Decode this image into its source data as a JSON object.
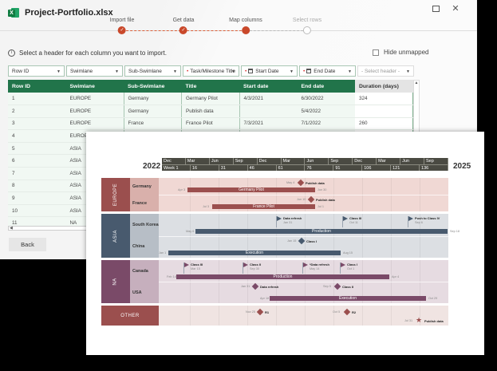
{
  "window": {
    "title": "Project-Portfolio.xlsx",
    "app_icon": "excel-icon",
    "controls": {
      "maximize": "maximize-icon",
      "close_glyph": "✕"
    }
  },
  "stepper": {
    "steps": [
      {
        "label": "Import file",
        "state": "done",
        "glyph": "✓"
      },
      {
        "label": "Get data",
        "state": "done",
        "glyph": "✓"
      },
      {
        "label": "Map columns",
        "state": "current",
        "glyph": ""
      },
      {
        "label": "Select rows",
        "state": "pending",
        "glyph": ""
      }
    ],
    "accent": "#c9482a"
  },
  "info": {
    "icon": "i",
    "text": "Select a header for each column you want to import."
  },
  "hide_unmapped": {
    "label": "Hide unmapped",
    "checked": false
  },
  "column_selectors": [
    {
      "value": "Row ID",
      "required": false,
      "calendar": false
    },
    {
      "value": "Swimlane",
      "required": false,
      "calendar": false
    },
    {
      "value": "Sub-Swimlane",
      "required": false,
      "calendar": false
    },
    {
      "value": "Task/Milestone Title",
      "required": true,
      "calendar": false
    },
    {
      "value": "Start Date",
      "required": true,
      "calendar": true
    },
    {
      "value": "End Date",
      "required": true,
      "calendar": true
    },
    {
      "value": "- Select header -",
      "required": false,
      "calendar": false,
      "placeholder": true
    }
  ],
  "table": {
    "headers": [
      "Row ID",
      "Swimlane",
      "Sub-Swimlane",
      "Title",
      "Start date",
      "End date",
      "Duration (days)"
    ],
    "rows": [
      [
        "1",
        "EUROPE",
        "Germany",
        "Germany Pilot",
        "4/3/2021",
        "6/30/2022",
        "324"
      ],
      [
        "2",
        "EUROPE",
        "Germany",
        "Publish data",
        "",
        "5/4/2022",
        ""
      ],
      [
        "3",
        "EUROPE",
        "France",
        "France Pilot",
        "7/3/2021",
        "7/1/2022",
        "260"
      ],
      [
        "4",
        "EUROPE",
        "",
        "",
        "",
        "",
        ""
      ],
      [
        "5",
        "ASIA",
        "",
        "",
        "",
        "",
        ""
      ],
      [
        "6",
        "ASIA",
        "",
        "",
        "",
        "",
        ""
      ],
      [
        "7",
        "ASIA",
        "",
        "",
        "",
        "",
        ""
      ],
      [
        "8",
        "ASIA",
        "",
        "",
        "",
        "",
        ""
      ],
      [
        "9",
        "ASIA",
        "",
        "",
        "",
        "",
        ""
      ],
      [
        "10",
        "ASIA",
        "",
        "",
        "",
        "",
        ""
      ],
      [
        "11",
        "NA",
        "",
        "",
        "",
        "",
        ""
      ]
    ],
    "header_color": "#21744a"
  },
  "buttons": {
    "back": "Back"
  },
  "gantt": {
    "start_year": "2022",
    "end_year": "2025",
    "months": [
      "Dec",
      "Mar",
      "Jun",
      "Sep",
      "Dec",
      "Mar",
      "Jun",
      "Sep",
      "Dec",
      "Mar",
      "Jun",
      "Sep"
    ],
    "weeks": [
      "Week 1",
      "16",
      "31",
      "46",
      "61",
      "76",
      "91",
      "106",
      "121",
      "136"
    ],
    "swimlanes": [
      {
        "name": "EUROPE",
        "color": "#9b4f4e",
        "sub_color": "#d9b0ab",
        "body_color": "#f0d8d4",
        "subs": [
          "Germany",
          "France"
        ],
        "tasks": [
          {
            "label": "Germany Pilot",
            "start": "Apr 3",
            "end": "Jun 30"
          },
          {
            "label": "France Pilot",
            "start": "Jul 3",
            "end": "Jul 1"
          }
        ],
        "milestones": [
          {
            "label": "Publish data",
            "date": "May 4",
            "shape": "diamond"
          },
          {
            "label": "Publish data",
            "date": "Jun 10",
            "shape": "diamond"
          }
        ]
      },
      {
        "name": "ASIA",
        "color": "#485a6e",
        "sub_color": "#b7bec6",
        "body_color": "#dcdfe3",
        "subs": [
          "South Korea",
          "China"
        ],
        "tasks": [
          {
            "label": "Production",
            "start": "May 6",
            "end": "Sep 18"
          },
          {
            "label": "Execution",
            "start": "Jan 1",
            "end": "Aug 15"
          }
        ],
        "milestones": [
          {
            "label": "Data refresh",
            "date": "Jan 31",
            "shape": "flag"
          },
          {
            "label": "Class III",
            "date": "Oct 11",
            "shape": "flag"
          },
          {
            "label": "Push to Class IV",
            "date": "Sep 6",
            "shape": "flag"
          },
          {
            "label": "Class I",
            "date": "Jan 15",
            "shape": "diamond"
          }
        ]
      },
      {
        "name": "NA",
        "color": "#7a4a68",
        "sub_color": "#c6afbd",
        "body_color": "#e6dbe1",
        "subs": [
          "Canada",
          "USA"
        ],
        "tasks": [
          {
            "label": "Production",
            "start": "Feb 14",
            "end": "Apr 4"
          },
          {
            "label": "Execution",
            "start": "Apr 18",
            "end": "Oct 29"
          }
        ],
        "milestones": [
          {
            "label": "Class III",
            "date": "Mar 15",
            "shape": "flag"
          },
          {
            "label": "Class II",
            "date": "Sep 30",
            "shape": "flag"
          },
          {
            "label": "*Data refresh",
            "date": "May 14",
            "shape": "flag"
          },
          {
            "label": "Class I",
            "date": "Oct 1",
            "shape": "flag"
          },
          {
            "label": "Data refresh",
            "date": "Jan 31",
            "shape": "diamond"
          },
          {
            "label": "Class II",
            "date": "Sep 5",
            "shape": "diamond"
          }
        ]
      },
      {
        "name": "OTHER",
        "color": "#9b4f4e",
        "sub_color": "#9b4f4e",
        "body_color": "#f0e4e2",
        "subs": [],
        "tasks": [],
        "milestones": [
          {
            "label": "R1",
            "date": "Nov 25",
            "shape": "diamond"
          },
          {
            "label": "R2",
            "date": "Oct 5",
            "shape": "diamond"
          },
          {
            "label": "Publish data",
            "date": "Jul 31",
            "shape": "star"
          }
        ]
      }
    ]
  }
}
